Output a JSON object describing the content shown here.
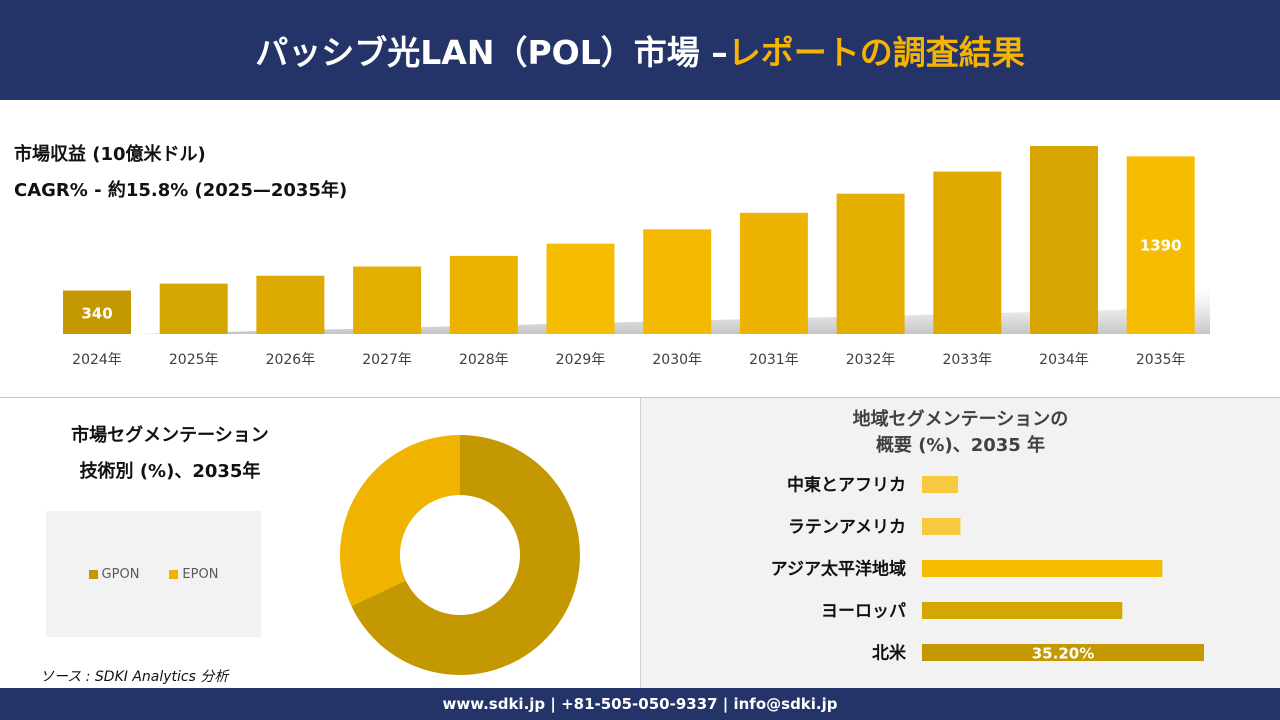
{
  "header": {
    "title_main": "パッシブ光LAN（POL）市場 –",
    "title_accent": "レポートの調査結果"
  },
  "revenue": {
    "title": "市場収益 (10億米ドル)",
    "cagr": "CAGR% - 約15.8% (2025—2035年)"
  },
  "segment": {
    "title_line1": "市場セグメンテーション",
    "title_line2": "技術別 (%)、2035年"
  },
  "region": {
    "title_line1": "地域セグメンテーションの",
    "title_line2": "概要 (%)、2035 年"
  },
  "source": "ソース : SDKI Analytics 分析",
  "footer": {
    "contact": "www.sdki.jp | +81-505-050-9337 | info@sdki.jp"
  },
  "chart_data": [
    {
      "type": "bar",
      "categories": [
        "2024年",
        "2025年",
        "2026年",
        "2027年",
        "2028年",
        "2029年",
        "2030年",
        "2031年",
        "2032年",
        "2033年",
        "2034年",
        "2035年"
      ],
      "values": [
        340,
        394,
        456,
        528,
        611,
        707,
        819,
        948,
        1098,
        1271,
        1471,
        1390
      ],
      "data_labels": {
        "2024年": "340",
        "2035年": "1390"
      },
      "title": "",
      "xlabel": "",
      "ylabel": "",
      "grid": false,
      "colors": {
        "first": "#c49800",
        "bars": [
          "#c49800",
          "#d4a600",
          "#dcaa00",
          "#e2ae00",
          "#ebb300",
          "#f5bc00",
          "#f3b800",
          "#ecb400",
          "#e4ae00",
          "#deaa00",
          "#d8a600",
          "#f5bc00"
        ]
      }
    },
    {
      "type": "pie",
      "style": "donut",
      "labels": [
        "GPON",
        "EPON"
      ],
      "values": [
        68,
        32
      ],
      "colors": [
        "#c49800",
        "#f0b400"
      ],
      "legend_position": "left"
    },
    {
      "type": "bar",
      "orientation": "horizontal",
      "categories": [
        "中東とアフリカ",
        "ラテンアメリカ",
        "アジア太平洋地域",
        "ヨーロッパ",
        "北米"
      ],
      "values": [
        4.5,
        4.8,
        30.0,
        25.0,
        35.2
      ],
      "data_labels": {
        "北米": "35.20%"
      },
      "colors": [
        "#f8c840",
        "#f8c840",
        "#f5bc00",
        "#d4a600",
        "#c49800"
      ]
    }
  ]
}
